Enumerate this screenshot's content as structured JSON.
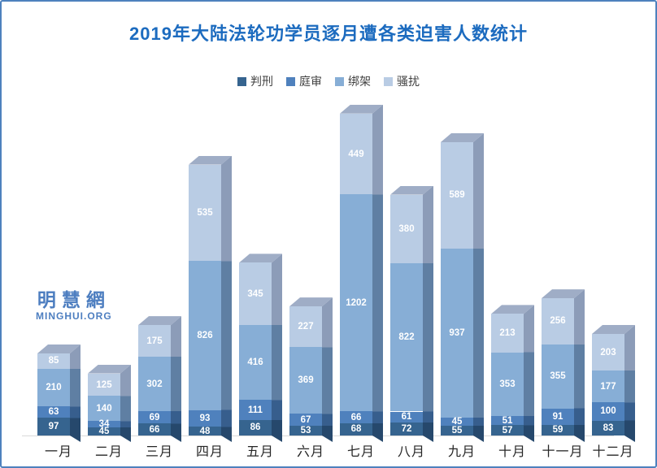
{
  "title": "2019年大陆法轮功学员逐月遭各类迫害人数统计",
  "watermark": {
    "cn": "明慧網",
    "en": "MINGHUI.ORG"
  },
  "colors": {
    "border": "#4e81bd",
    "title_text": "#1c6bbf",
    "watermark_text": "#4d7ec0",
    "axis_line": "#d9d9d9",
    "x_label_text": "#262626",
    "legend_text": "#404040",
    "value_label_text": "#ffffff",
    "bar_top_face": "#9fadc6"
  },
  "chart_data": {
    "type": "bar",
    "stacked": true,
    "style": "3d-column",
    "title": "2019年大陆法轮功学员逐月遭各类迫害人数统计",
    "legend_position": "top",
    "grid": false,
    "y_axis_shown": false,
    "categories": [
      "一月",
      "二月",
      "三月",
      "四月",
      "五月",
      "六月",
      "七月",
      "八月",
      "九月",
      "十月",
      "十一月",
      "十二月"
    ],
    "series": [
      {
        "key": "sentenced",
        "name": "判刑",
        "color": "#36648f",
        "side_color": "#26486c",
        "values": [
          97,
          45,
          66,
          48,
          86,
          53,
          68,
          72,
          55,
          57,
          59,
          83
        ]
      },
      {
        "key": "trial",
        "name": "庭审",
        "color": "#4f81bd",
        "side_color": "#375e8d",
        "values": [
          63,
          34,
          69,
          93,
          111,
          67,
          66,
          61,
          45,
          51,
          91,
          100
        ]
      },
      {
        "key": "abduction",
        "name": "绑架",
        "color": "#87aed6",
        "side_color": "#5f7fa3",
        "values": [
          210,
          140,
          302,
          826,
          416,
          369,
          1202,
          822,
          937,
          353,
          355,
          177
        ]
      },
      {
        "key": "harassment",
        "name": "骚扰",
        "color": "#b9cce4",
        "side_color": "#8c9cb8",
        "values": [
          85,
          125,
          175,
          535,
          345,
          227,
          449,
          380,
          589,
          213,
          256,
          203
        ]
      }
    ],
    "monthly_totals": [
      455,
      344,
      612,
      1502,
      958,
      716,
      1785,
      1335,
      1626,
      674,
      761,
      563
    ]
  }
}
